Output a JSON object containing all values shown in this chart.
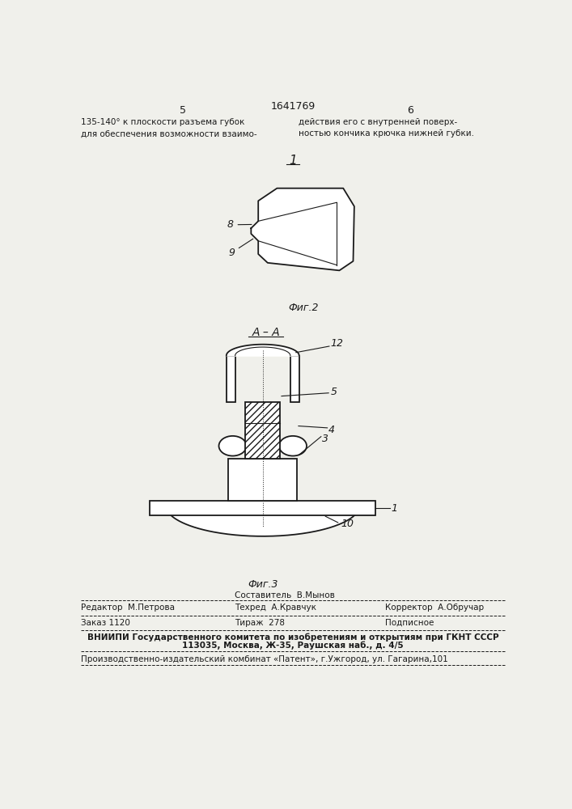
{
  "bg_color": "#f0f0eb",
  "page_color": "#f0f0eb",
  "header_left_col": "5",
  "header_center": "1641769",
  "header_right_col": "6",
  "header_text_left": "135-140° к плоскости разъема губок\nдля обеспечения возможности взаимо-",
  "header_text_right": "действия его с внутренней поверх-\nностью кончика крючка нижней губки.",
  "fig1_label": "1",
  "fig2_caption": "Фиг.2",
  "fig3_caption": "Фиг.3",
  "fig3_section_label": "A – A",
  "footer_editor": "Редактор  М.Петрова",
  "footer_composer": "Составитель  В.Мынов",
  "footer_tech": "Техред  А.Кравчук",
  "footer_corrector": "Корректор  А.Обручар",
  "footer_order": "Заказ 1120",
  "footer_tirazh": "Тираж  278",
  "footer_podpisnoe": "Подписное",
  "footer_vniipii": "ВНИИПИ Государственного комитета по изобретениям и открытиям при ГКНТ СССР",
  "footer_address": "113035, Москва, Ж-35, Раушская наб., д. 4/5",
  "footer_publisher": "Производственно-издательский комбинат «Патент», г.Ужгород, ул. Гагарина,101"
}
